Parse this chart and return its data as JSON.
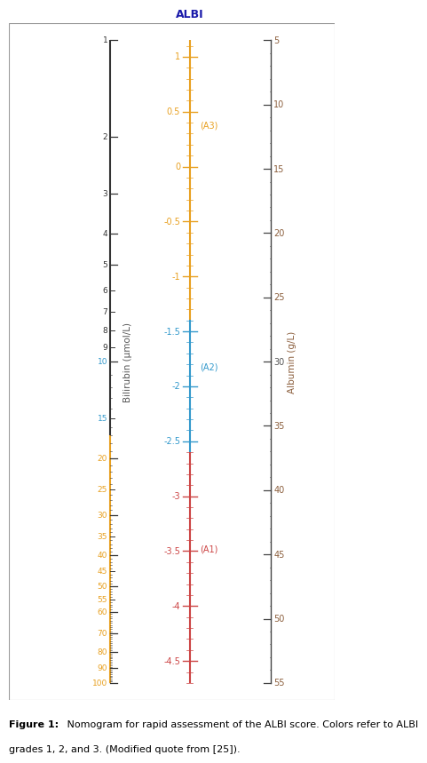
{
  "fig_width": 5.92,
  "fig_height": 8.96,
  "bg_color": "#ffffff",
  "albi_min": -4.7,
  "albi_max": 1.15,
  "albi_label": "ALBI",
  "albi_grade3_color": "#E8A020",
  "albi_grade2_color": "#3399CC",
  "albi_grade1_color": "#CC4444",
  "albi_boundary_a3_a2": -1.39,
  "albi_boundary_a2_a1": -2.6,
  "albi_major_ticks": [
    1.0,
    0.5,
    0.0,
    -0.5,
    -1.0,
    -1.5,
    -2.0,
    -2.5,
    -3.0,
    -3.5,
    -4.0,
    -4.5
  ],
  "albi_annotations": [
    {
      "text": "(A3)",
      "value": 0.38,
      "color": "#E8A020"
    },
    {
      "text": "(A2)",
      "value": -1.82,
      "color": "#3399CC"
    },
    {
      "text": "(A1)",
      "value": -3.48,
      "color": "#CC4444"
    }
  ],
  "albumin_min": 5,
  "albumin_max": 55,
  "albumin_label": "Albumin (g/L)",
  "albumin_major_ticks": [
    5,
    10,
    15,
    20,
    25,
    30,
    35,
    40,
    45,
    50,
    55
  ],
  "albumin_color": "#8B5E3C",
  "bili_label": "Bilirubin (μmol/L)",
  "bili_major_labeled": [
    1,
    2,
    3,
    4,
    5,
    6,
    7,
    8,
    9,
    10,
    15,
    20,
    25,
    30,
    35,
    40,
    45,
    50,
    55,
    60,
    70,
    80,
    90,
    100
  ],
  "bili_color_low": "#333333",
  "bili_color_high_orange": "#E8A020",
  "bili_color_high_blue": "#3399CC",
  "bili_boundary_orange": 17,
  "caption_bold": "Figure 1:",
  "caption_normal": " Nomogram for rapid assessment of the ALBI score. Colors refer to ALBI\ngrades 1, 2, and 3. (Modified quote from [25])."
}
